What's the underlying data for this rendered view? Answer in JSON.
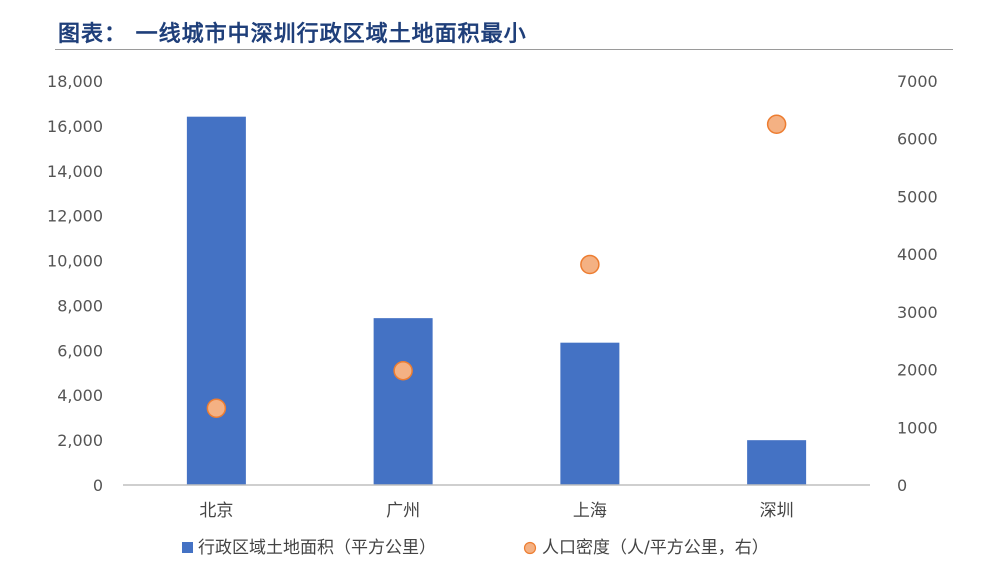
{
  "title": "图表： 一线城市中深圳行政区域土地面积最小",
  "chart_data": {
    "type": "bar",
    "categories": [
      "北京",
      "广州",
      "上海",
      "深圳"
    ],
    "series": [
      {
        "name": "行政区域土地面积（平方公里）",
        "type": "bar",
        "axis": "left",
        "color": "#4472c4",
        "values": [
          16410,
          7434,
          6341,
          1997
        ]
      },
      {
        "name": "人口密度（人/平方公里，右）",
        "type": "scatter",
        "axis": "right",
        "color": "#f4b183",
        "values": [
          1330,
          1980,
          3820,
          6250
        ]
      }
    ],
    "y_left": {
      "ylim": [
        0,
        18000
      ],
      "ticks": [
        "0",
        "2,000",
        "4,000",
        "6,000",
        "8,000",
        "10,000",
        "12,000",
        "14,000",
        "16,000",
        "18,000"
      ]
    },
    "y_right": {
      "ylim": [
        0,
        7000
      ],
      "ticks": [
        "0",
        "1000",
        "2000",
        "3000",
        "4000",
        "5000",
        "6000",
        "7000"
      ]
    },
    "grid": false,
    "legend_position": "bottom"
  }
}
